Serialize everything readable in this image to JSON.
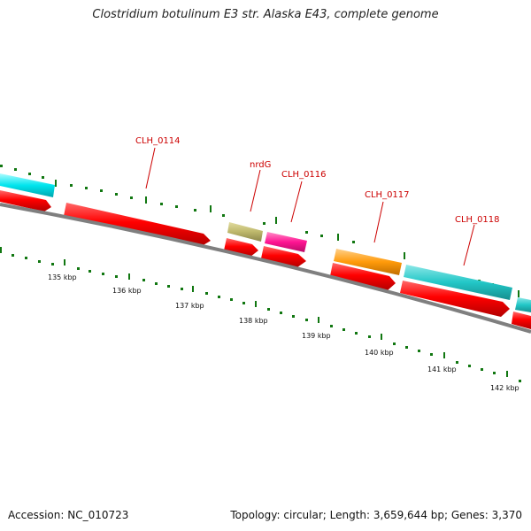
{
  "title": "Clostridium botulinum E3 str. Alaska E43, complete genome",
  "footer": {
    "accession": "Accession: NC_010723",
    "summary": "Topology: circular; Length: 3,659,644 bp; Genes: 3,370"
  },
  "colors": {
    "backbone": "#7f7f7f",
    "cds": "#ff0000",
    "cyan": "#00e5ee",
    "teal": "#22c7c7",
    "khaki": "#bdb76b",
    "magenta": "#ff1493",
    "orange": "#ff9a0a",
    "tick": "#117711",
    "label_red": "#cc0000"
  },
  "scale_labels": [
    "135 kbp",
    "136 kbp",
    "137 kbp",
    "138 kbp",
    "139 kbp",
    "140 kbp",
    "141 kbp",
    "142 kbp"
  ],
  "gene_labels": [
    "CLH_0114",
    "nrdG",
    "CLH_0116",
    "CLH_0117",
    "CLH_0118"
  ]
}
